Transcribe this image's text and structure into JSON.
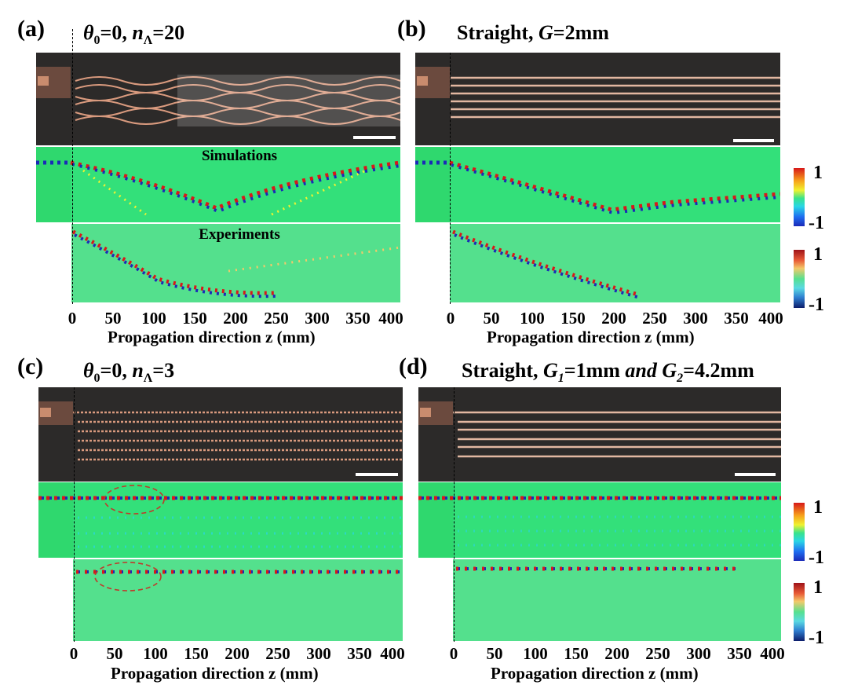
{
  "panels": [
    {
      "label": "(a)",
      "title_prefix": "θ",
      "title_sub0": "0",
      "title_mid": "=0, ",
      "title_n": "n",
      "title_subL": "Λ",
      "title_end": "=20"
    },
    {
      "label": "(b)",
      "title": "Straight, ",
      "title_var": "G",
      "title_end": "=2mm"
    },
    {
      "label": "(c)",
      "title_prefix": "θ",
      "title_sub0": "0",
      "title_mid": "=0, ",
      "title_n": "n",
      "title_subL": "Λ",
      "title_end": "=3"
    },
    {
      "label": "(d)",
      "title": "Straight, ",
      "g1": "G",
      "g1sub": "1",
      "mid": "=1mm ",
      "and": "and",
      "g2": " G",
      "g2sub": "2",
      "end": "=4.2mm"
    }
  ],
  "map_labels": {
    "simulations": "Simulations",
    "experiments": "Experiments"
  },
  "axis": {
    "ticks": [
      "0",
      "50",
      "100",
      "150",
      "200",
      "250",
      "300",
      "350",
      "400"
    ],
    "xlabel": "Propagation direction z (mm)"
  },
  "colorbar": {
    "max": "1",
    "min": "-1"
  },
  "colors": {
    "photo_bg": "#2c2a29",
    "copper": "#d99a7e",
    "field_bg": "#33e07a",
    "red": "#d71919",
    "blue": "#1b2ab8"
  }
}
